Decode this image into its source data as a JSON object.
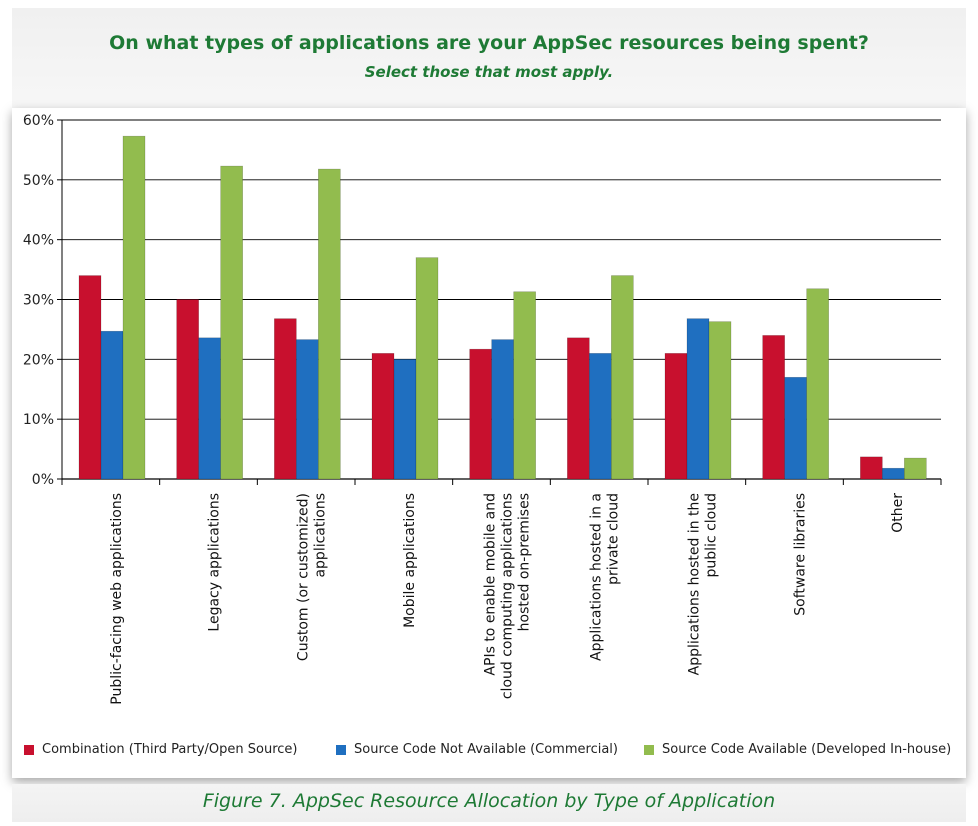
{
  "header": {
    "title": "On what types of applications are your AppSec resources being spent?",
    "subtitle": "Select those that most apply."
  },
  "caption": "Figure 7. AppSec Resource Allocation by Type of Application",
  "chart_data": {
    "type": "bar",
    "ylim": [
      0,
      60
    ],
    "y_ticks": [
      "0%",
      "10%",
      "20%",
      "30%",
      "40%",
      "50%",
      "60%"
    ],
    "categories": [
      [
        "Public-facing web applications"
      ],
      [
        "Legacy applications"
      ],
      [
        "Custom (or customized)",
        "applications"
      ],
      [
        "Mobile applications"
      ],
      [
        "APIs to enable mobile and",
        "cloud computing applications",
        "hosted on-premises"
      ],
      [
        "Applications hosted in a",
        "private cloud"
      ],
      [
        "Applications hosted in the",
        "public cloud"
      ],
      [
        "Software libraries"
      ],
      [
        "Other"
      ]
    ],
    "series": [
      {
        "name": "Combination (Third Party/Open Source)",
        "color": "#c8102e",
        "values": [
          34,
          30,
          26.8,
          21,
          21.7,
          23.6,
          21,
          24,
          3.7
        ]
      },
      {
        "name": "Source Code Not Available (Commercial)",
        "color": "#1f6fc0",
        "values": [
          24.7,
          23.6,
          23.3,
          20,
          23.3,
          21,
          26.8,
          17,
          1.8
        ]
      },
      {
        "name": "Source Code Available (Developed In-house)",
        "color": "#92bc4e",
        "values": [
          57.3,
          52.3,
          51.8,
          37,
          31.3,
          34,
          26.3,
          31.8,
          3.5
        ]
      }
    ],
    "grid": true,
    "legend_position": "bottom"
  }
}
